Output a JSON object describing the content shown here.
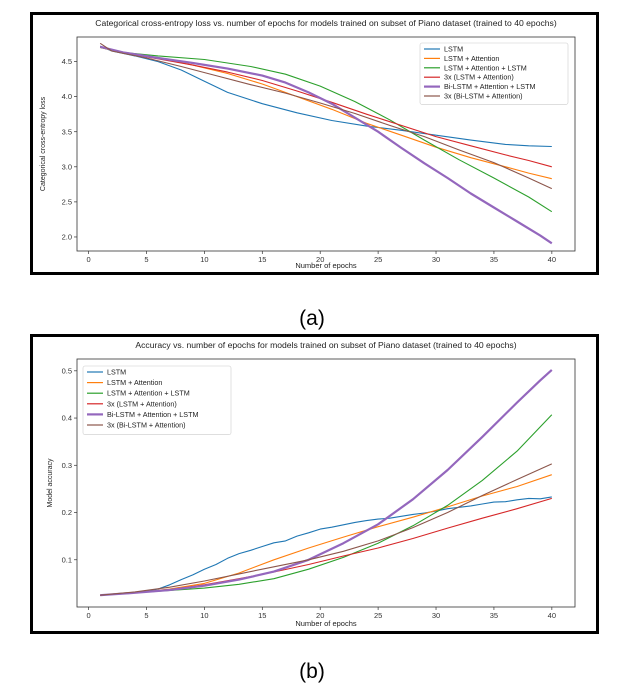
{
  "colors": {
    "lstm": "#1f77b4",
    "lstm_attention": "#ff7f0e",
    "lstm_attention_lstm": "#2ca02c",
    "three_lstm_attention": "#d62728",
    "bilstm_attention_lstm": "#9467bd",
    "three_bilstm_attention": "#8c564b"
  },
  "captions": {
    "a": "(a)",
    "b": "(b)"
  },
  "chart_data": [
    {
      "type": "line",
      "title": "Categorical cross-entropy loss vs. number of epochs for models trained on subset of Piano dataset (trained to 40 epochs)",
      "xlabel": "Number of epochs",
      "ylabel": "Categorical cross-entropy loss",
      "xlim": [
        -1,
        42
      ],
      "ylim": [
        1.8,
        4.85
      ],
      "xticks": [
        0,
        5,
        10,
        15,
        20,
        25,
        30,
        35,
        40
      ],
      "yticks": [
        2.0,
        2.5,
        3.0,
        3.5,
        4.0,
        4.5
      ],
      "ytick_labels": [
        "2.0",
        "2.5",
        "3.0",
        "3.5",
        "4.0",
        "4.5"
      ],
      "legend_position": "top-right",
      "series": [
        {
          "name": "LSTM",
          "color_key": "lstm",
          "points": [
            [
              1,
              4.72
            ],
            [
              2,
              4.65
            ],
            [
              4,
              4.58
            ],
            [
              6,
              4.5
            ],
            [
              8,
              4.38
            ],
            [
              10,
              4.22
            ],
            [
              12,
              4.06
            ],
            [
              15,
              3.9
            ],
            [
              18,
              3.77
            ],
            [
              21,
              3.66
            ],
            [
              24,
              3.58
            ],
            [
              27,
              3.52
            ],
            [
              30,
              3.45
            ],
            [
              33,
              3.38
            ],
            [
              36,
              3.32
            ],
            [
              38,
              3.3
            ],
            [
              40,
              3.29
            ]
          ]
        },
        {
          "name": "LSTM + Attention",
          "color_key": "lstm_attention",
          "points": [
            [
              1,
              4.7
            ],
            [
              3,
              4.62
            ],
            [
              6,
              4.55
            ],
            [
              9,
              4.45
            ],
            [
              12,
              4.33
            ],
            [
              15,
              4.18
            ],
            [
              18,
              4.0
            ],
            [
              21,
              3.82
            ],
            [
              24,
              3.62
            ],
            [
              27,
              3.45
            ],
            [
              30,
              3.28
            ],
            [
              33,
              3.13
            ],
            [
              36,
              3.0
            ],
            [
              38,
              2.91
            ],
            [
              40,
              2.83
            ]
          ]
        },
        {
          "name": "LSTM + Attention + LSTM",
          "color_key": "lstm_attention_lstm",
          "points": [
            [
              1,
              4.7
            ],
            [
              3,
              4.63
            ],
            [
              6,
              4.58
            ],
            [
              10,
              4.53
            ],
            [
              14,
              4.43
            ],
            [
              17,
              4.32
            ],
            [
              20,
              4.15
            ],
            [
              23,
              3.93
            ],
            [
              26,
              3.67
            ],
            [
              29,
              3.38
            ],
            [
              32,
              3.1
            ],
            [
              35,
              2.84
            ],
            [
              38,
              2.57
            ],
            [
              40,
              2.36
            ]
          ]
        },
        {
          "name": "3x (LSTM + Attention)",
          "color_key": "three_lstm_attention",
          "points": [
            [
              1,
              4.71
            ],
            [
              3,
              4.62
            ],
            [
              6,
              4.54
            ],
            [
              9,
              4.45
            ],
            [
              12,
              4.35
            ],
            [
              15,
              4.23
            ],
            [
              18,
              4.08
            ],
            [
              21,
              3.92
            ],
            [
              24,
              3.75
            ],
            [
              27,
              3.59
            ],
            [
              30,
              3.43
            ],
            [
              33,
              3.3
            ],
            [
              36,
              3.17
            ],
            [
              38,
              3.09
            ],
            [
              40,
              3.0
            ]
          ]
        },
        {
          "name": "Bi-LSTM + Attention + LSTM",
          "color_key": "bilstm_attention_lstm",
          "points": [
            [
              1,
              4.71
            ],
            [
              3,
              4.63
            ],
            [
              6,
              4.55
            ],
            [
              9,
              4.48
            ],
            [
              12,
              4.4
            ],
            [
              15,
              4.3
            ],
            [
              17,
              4.2
            ],
            [
              19,
              4.06
            ],
            [
              21,
              3.9
            ],
            [
              23,
              3.7
            ],
            [
              25,
              3.5
            ],
            [
              27,
              3.27
            ],
            [
              29,
              3.05
            ],
            [
              31,
              2.84
            ],
            [
              33,
              2.62
            ],
            [
              35,
              2.42
            ],
            [
              37,
              2.22
            ],
            [
              39,
              2.02
            ],
            [
              40,
              1.91
            ]
          ]
        },
        {
          "name": "3x (Bi-LSTM + Attention)",
          "color_key": "three_bilstm_attention",
          "points": [
            [
              1,
              4.76
            ],
            [
              2,
              4.65
            ],
            [
              5,
              4.55
            ],
            [
              8,
              4.43
            ],
            [
              11,
              4.3
            ],
            [
              14,
              4.17
            ],
            [
              17,
              4.05
            ],
            [
              20,
              3.91
            ],
            [
              23,
              3.76
            ],
            [
              26,
              3.59
            ],
            [
              29,
              3.43
            ],
            [
              32,
              3.24
            ],
            [
              35,
              3.06
            ],
            [
              38,
              2.84
            ],
            [
              40,
              2.69
            ]
          ]
        }
      ]
    },
    {
      "type": "line",
      "title": "Accuracy vs. number of epochs for models trained on subset of Piano dataset (trained to 40 epochs)",
      "xlabel": "Number of epochs",
      "ylabel": "Model accuracy",
      "xlim": [
        -1,
        42
      ],
      "ylim": [
        0.0,
        0.525
      ],
      "xticks": [
        0,
        5,
        10,
        15,
        20,
        25,
        30,
        35,
        40
      ],
      "yticks": [
        0.1,
        0.2,
        0.3,
        0.4,
        0.5
      ],
      "ytick_labels": [
        "0.1",
        "0.2",
        "0.3",
        "0.4",
        "0.5"
      ],
      "legend_position": "top-left",
      "series": [
        {
          "name": "LSTM",
          "color_key": "lstm",
          "points": [
            [
              1,
              0.025
            ],
            [
              3,
              0.028
            ],
            [
              5,
              0.033
            ],
            [
              6,
              0.038
            ],
            [
              7,
              0.047
            ],
            [
              8,
              0.058
            ],
            [
              9,
              0.068
            ],
            [
              10,
              0.08
            ],
            [
              11,
              0.09
            ],
            [
              12,
              0.103
            ],
            [
              13,
              0.113
            ],
            [
              14,
              0.12
            ],
            [
              15,
              0.128
            ],
            [
              16,
              0.136
            ],
            [
              17,
              0.14
            ],
            [
              18,
              0.15
            ],
            [
              19,
              0.157
            ],
            [
              20,
              0.165
            ],
            [
              21,
              0.169
            ],
            [
              22,
              0.174
            ],
            [
              23,
              0.179
            ],
            [
              24,
              0.183
            ],
            [
              25,
              0.186
            ],
            [
              26,
              0.188
            ],
            [
              27,
              0.192
            ],
            [
              28,
              0.196
            ],
            [
              29,
              0.199
            ],
            [
              30,
              0.203
            ],
            [
              31,
              0.208
            ],
            [
              32,
              0.211
            ],
            [
              33,
              0.214
            ],
            [
              34,
              0.218
            ],
            [
              35,
              0.222
            ],
            [
              36,
              0.223
            ],
            [
              37,
              0.227
            ],
            [
              38,
              0.23
            ],
            [
              39,
              0.229
            ],
            [
              40,
              0.233
            ]
          ]
        },
        {
          "name": "LSTM + Attention",
          "color_key": "lstm_attention",
          "points": [
            [
              1,
              0.025
            ],
            [
              4,
              0.03
            ],
            [
              7,
              0.038
            ],
            [
              10,
              0.05
            ],
            [
              13,
              0.072
            ],
            [
              16,
              0.1
            ],
            [
              19,
              0.125
            ],
            [
              22,
              0.148
            ],
            [
              25,
              0.17
            ],
            [
              28,
              0.19
            ],
            [
              31,
              0.212
            ],
            [
              34,
              0.235
            ],
            [
              37,
              0.255
            ],
            [
              40,
              0.28
            ]
          ]
        },
        {
          "name": "LSTM + Attention + LSTM",
          "color_key": "lstm_attention_lstm",
          "points": [
            [
              1,
              0.025
            ],
            [
              4,
              0.03
            ],
            [
              7,
              0.035
            ],
            [
              10,
              0.04
            ],
            [
              13,
              0.048
            ],
            [
              16,
              0.06
            ],
            [
              19,
              0.08
            ],
            [
              22,
              0.105
            ],
            [
              25,
              0.135
            ],
            [
              28,
              0.172
            ],
            [
              31,
              0.215
            ],
            [
              34,
              0.268
            ],
            [
              37,
              0.33
            ],
            [
              40,
              0.407
            ]
          ]
        },
        {
          "name": "3x (LSTM + Attention)",
          "color_key": "three_lstm_attention",
          "points": [
            [
              1,
              0.025
            ],
            [
              4,
              0.03
            ],
            [
              7,
              0.037
            ],
            [
              10,
              0.047
            ],
            [
              13,
              0.06
            ],
            [
              16,
              0.074
            ],
            [
              19,
              0.09
            ],
            [
              22,
              0.108
            ],
            [
              25,
              0.125
            ],
            [
              28,
              0.145
            ],
            [
              31,
              0.167
            ],
            [
              34,
              0.188
            ],
            [
              37,
              0.208
            ],
            [
              40,
              0.23
            ]
          ]
        },
        {
          "name": "Bi-LSTM + Attention + LSTM",
          "color_key": "bilstm_attention_lstm",
          "points": [
            [
              1,
              0.025
            ],
            [
              4,
              0.03
            ],
            [
              7,
              0.036
            ],
            [
              10,
              0.045
            ],
            [
              13,
              0.058
            ],
            [
              16,
              0.075
            ],
            [
              19,
              0.1
            ],
            [
              22,
              0.135
            ],
            [
              25,
              0.175
            ],
            [
              28,
              0.228
            ],
            [
              31,
              0.29
            ],
            [
              34,
              0.36
            ],
            [
              37,
              0.433
            ],
            [
              39,
              0.48
            ],
            [
              40,
              0.502
            ]
          ]
        },
        {
          "name": "3x (Bi-LSTM + Attention)",
          "color_key": "three_bilstm_attention",
          "points": [
            [
              1,
              0.025
            ],
            [
              4,
              0.032
            ],
            [
              7,
              0.042
            ],
            [
              10,
              0.055
            ],
            [
              13,
              0.07
            ],
            [
              16,
              0.085
            ],
            [
              19,
              0.1
            ],
            [
              22,
              0.118
            ],
            [
              25,
              0.14
            ],
            [
              28,
              0.168
            ],
            [
              31,
              0.2
            ],
            [
              34,
              0.236
            ],
            [
              37,
              0.27
            ],
            [
              40,
              0.303
            ]
          ]
        }
      ]
    }
  ]
}
